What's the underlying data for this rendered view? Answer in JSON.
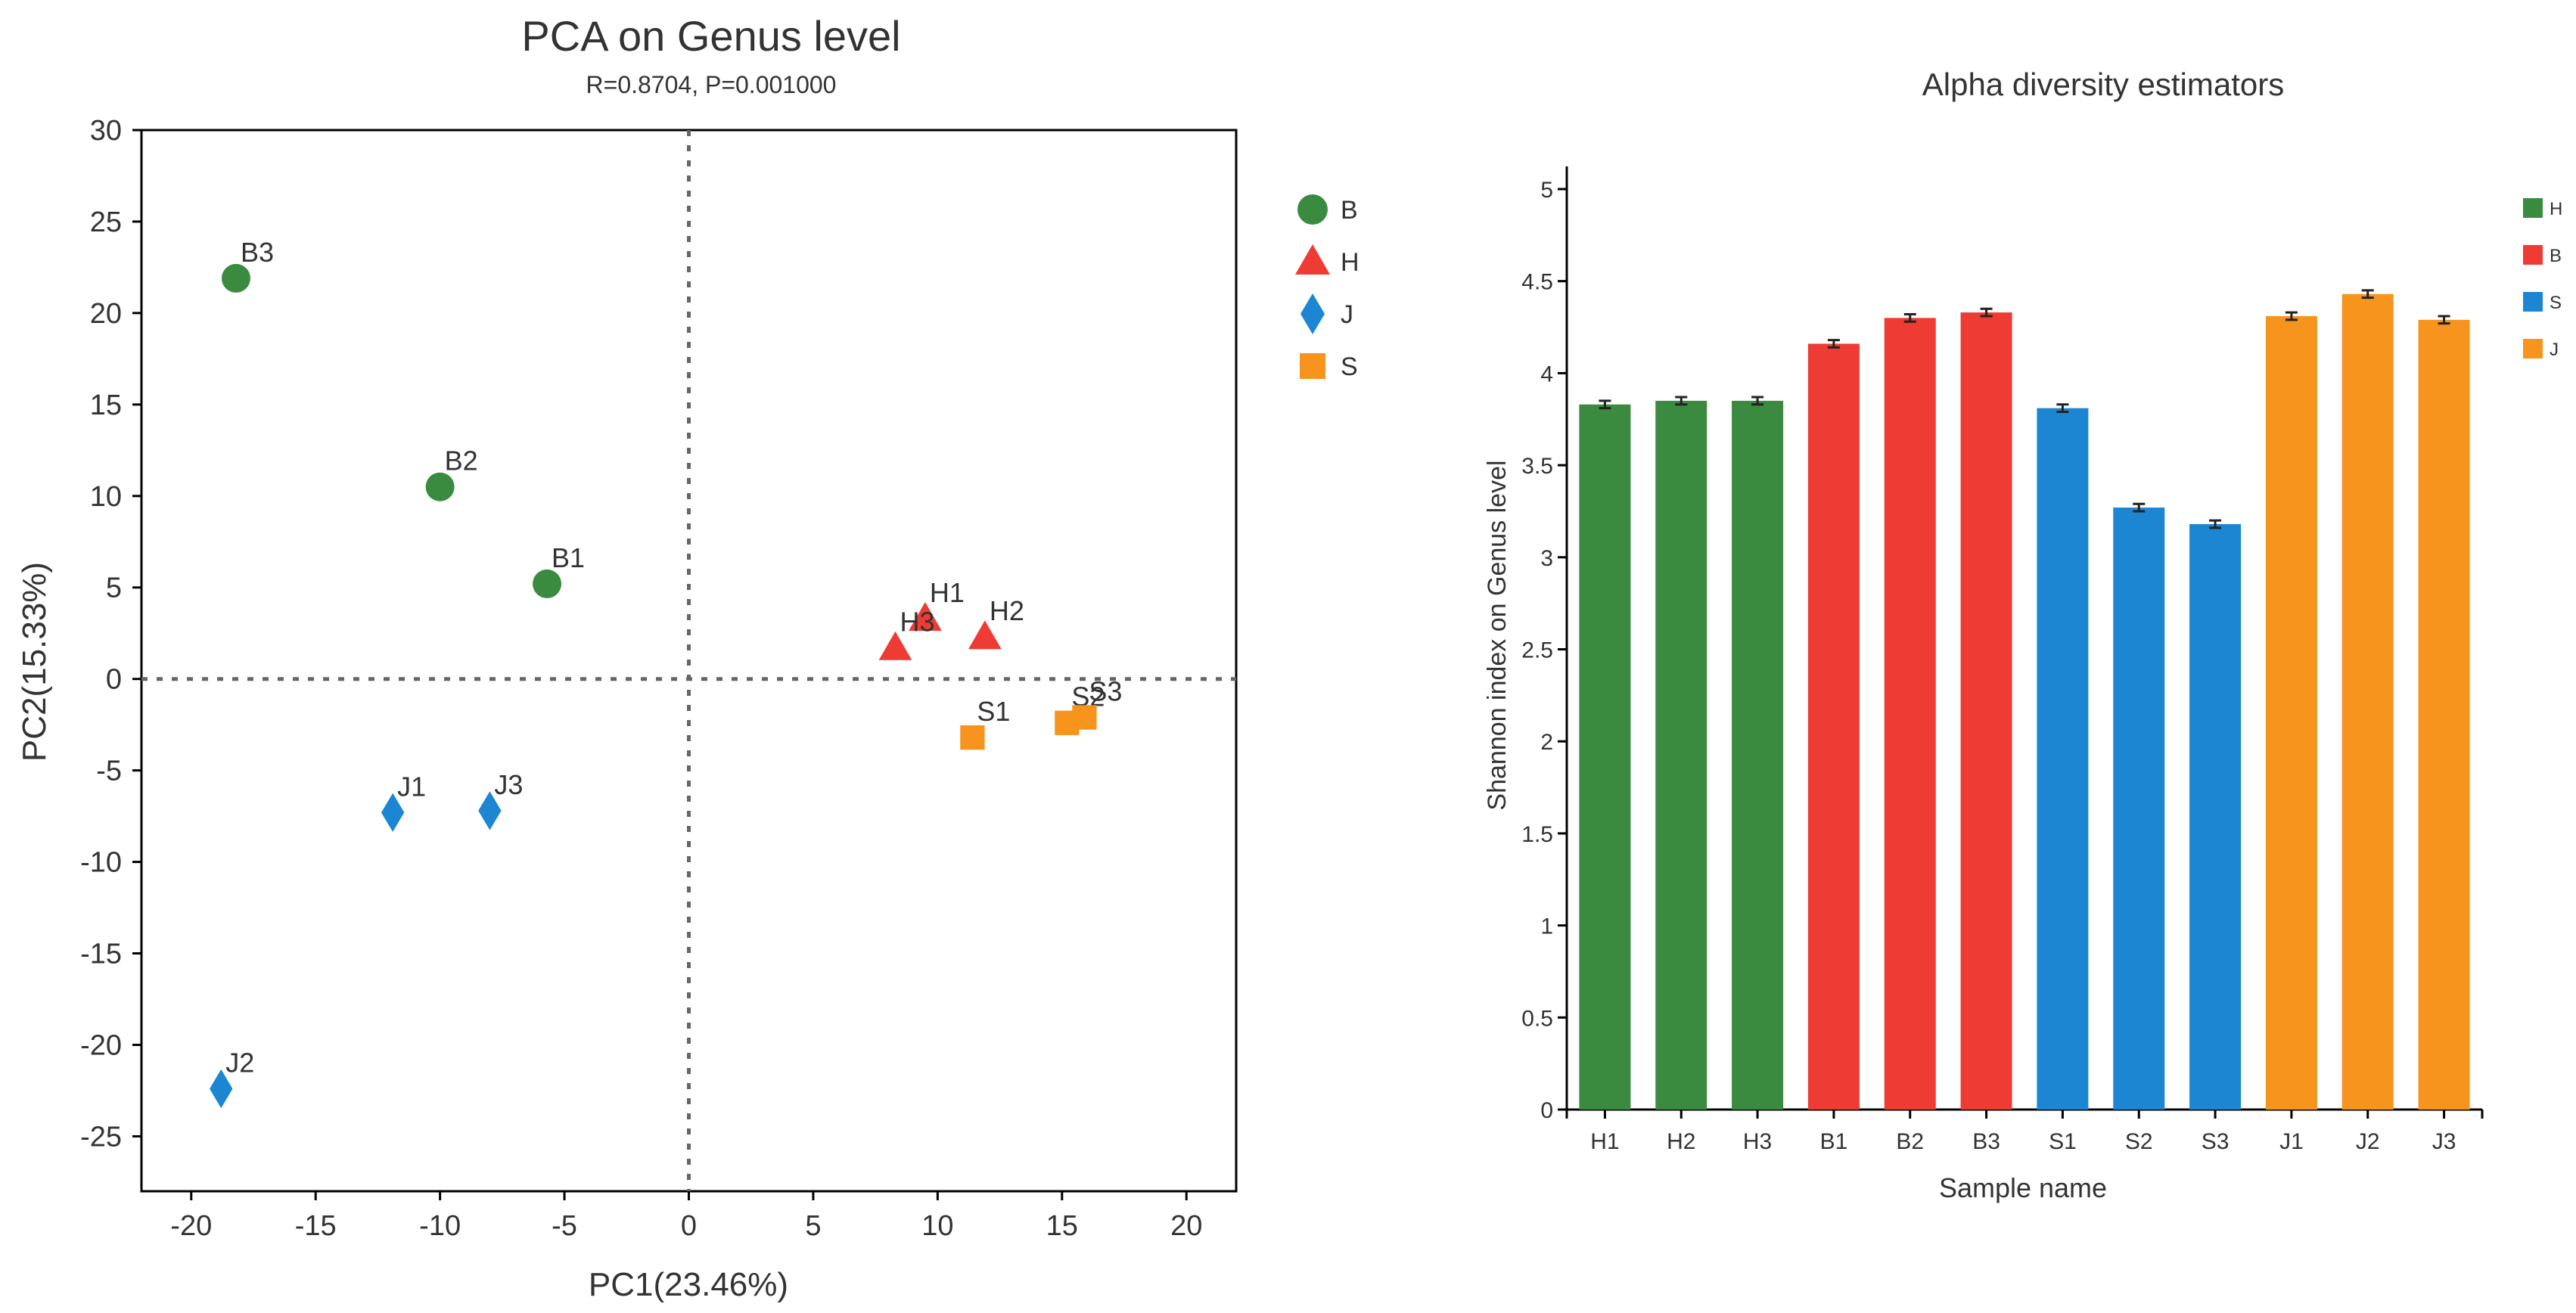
{
  "chart_data": [
    {
      "type": "scatter",
      "title": "PCA on Genus level",
      "subtitle": "R=0.8704, P=0.001000",
      "xlabel": "PC1(23.46%)",
      "ylabel": "PC2(15.33%)",
      "xlim": [
        -22,
        22
      ],
      "ylim": [
        -28,
        30
      ],
      "xticks": [
        -20,
        -15,
        -10,
        -5,
        0,
        5,
        10,
        15,
        20
      ],
      "yticks": [
        30,
        25,
        20,
        15,
        10,
        5,
        0,
        -5,
        -10,
        -15,
        -20,
        -25
      ],
      "ytick_labels": [
        "30",
        "25",
        "20",
        "15",
        "10",
        "5",
        "0",
        "-5",
        "-10",
        "-15",
        "-20",
        "-25"
      ],
      "reference_lines": {
        "x": 0,
        "y": 0,
        "style": "dotted"
      },
      "legend": {
        "position": "right",
        "entries": [
          {
            "label": "B",
            "shape": "circle",
            "color": "#3a8b3f"
          },
          {
            "label": "H",
            "shape": "triangle",
            "color": "#ee3b34"
          },
          {
            "label": "J",
            "shape": "diamond",
            "color": "#1c86d2"
          },
          {
            "label": "S",
            "shape": "square",
            "color": "#f7941d"
          }
        ]
      },
      "series": [
        {
          "name": "B",
          "points": [
            {
              "label": "B1",
              "x": -5.7,
              "y": 5.2
            },
            {
              "label": "B2",
              "x": -10.0,
              "y": 10.5
            },
            {
              "label": "B3",
              "x": -18.2,
              "y": 21.9
            }
          ]
        },
        {
          "name": "H",
          "points": [
            {
              "label": "H1",
              "x": 9.5,
              "y": 3.3
            },
            {
              "label": "H2",
              "x": 11.9,
              "y": 2.3
            },
            {
              "label": "H3",
              "x": 8.3,
              "y": 1.7
            }
          ]
        },
        {
          "name": "J",
          "points": [
            {
              "label": "J1",
              "x": -11.9,
              "y": -7.3
            },
            {
              "label": "J2",
              "x": -18.8,
              "y": -22.4
            },
            {
              "label": "J3",
              "x": -8.0,
              "y": -7.2
            }
          ]
        },
        {
          "name": "S",
          "points": [
            {
              "label": "S1",
              "x": 11.4,
              "y": -3.2
            },
            {
              "label": "S2",
              "x": 15.2,
              "y": -2.4
            },
            {
              "label": "S3",
              "x": 15.9,
              "y": -2.1
            }
          ]
        }
      ]
    },
    {
      "type": "bar",
      "title": "Alpha diversity estimators",
      "xlabel": "Sample name",
      "ylabel": "Shannon index on Genus level",
      "ylim": [
        0,
        5
      ],
      "yticks": [
        0,
        0.5,
        1,
        1.5,
        2,
        2.5,
        3,
        3.5,
        4,
        4.5,
        5
      ],
      "ytick_labels": [
        "0",
        "0.5",
        "1",
        "1.5",
        "2",
        "2.5",
        "3",
        "3.5",
        "4",
        "4.5",
        "5"
      ],
      "categories": [
        "H1",
        "H2",
        "H3",
        "B1",
        "B2",
        "B3",
        "S1",
        "S2",
        "S3",
        "J1",
        "J2",
        "J3"
      ],
      "values": [
        3.83,
        3.85,
        3.85,
        4.16,
        4.3,
        4.33,
        3.81,
        3.27,
        3.18,
        4.31,
        4.43,
        4.29
      ],
      "errors": [
        0.02,
        0.02,
        0.02,
        0.02,
        0.02,
        0.02,
        0.02,
        0.02,
        0.02,
        0.02,
        0.02,
        0.02
      ],
      "groups": [
        "H",
        "H",
        "H",
        "B",
        "B",
        "B",
        "S",
        "S",
        "S",
        "J",
        "J",
        "J"
      ],
      "legend": {
        "position": "right",
        "entries": [
          {
            "label": "H",
            "color": "#3a8b3f"
          },
          {
            "label": "B",
            "color": "#ee3b34"
          },
          {
            "label": "S",
            "color": "#1c86d2"
          },
          {
            "label": "J",
            "color": "#f7941d"
          }
        ]
      }
    }
  ]
}
